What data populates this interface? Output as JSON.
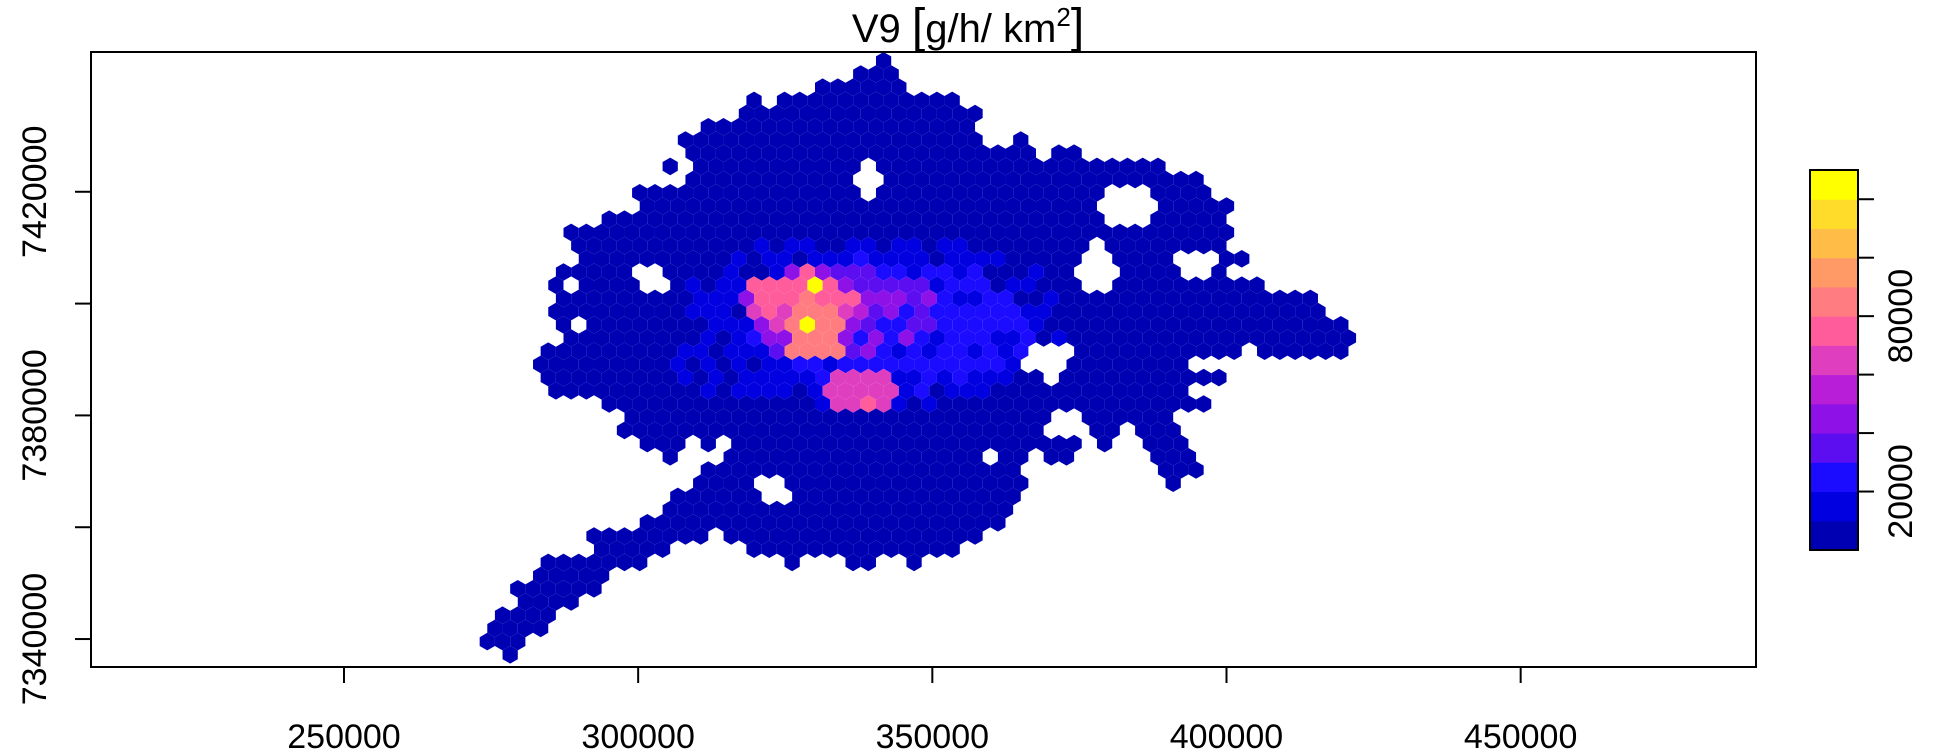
{
  "chart_data": {
    "type": "heatmap",
    "subtype": "hexbin",
    "title": {
      "prefix": "V9 ",
      "unit_main": "g/h/ km",
      "unit_exp": "2"
    },
    "xlabel": "",
    "ylabel": "",
    "x_ticks": [
      250000,
      300000,
      350000,
      400000,
      450000
    ],
    "x_tick_labels": [
      "250000",
      "300000",
      "350000",
      "400000",
      "450000"
    ],
    "y_ticks": [
      7340000,
      7380000,
      7420000
    ],
    "y_tick_labels": [
      "7340000",
      "7380000",
      "7420000"
    ],
    "xlim": [
      207000,
      490000
    ],
    "ylim": [
      7335000,
      7445000
    ],
    "grid": false,
    "colorbar": {
      "colors": [
        "#0000b3",
        "#0000e0",
        "#1c0cff",
        "#5c0ef0",
        "#8e12e8",
        "#b81ed8",
        "#df3fbf",
        "#ff5c9c",
        "#ff7d80",
        "#ff9a66",
        "#ffbd47",
        "#ffdc2a",
        "#ffff00"
      ],
      "tick_values": [
        20000,
        80000
      ],
      "tick_labels": [
        "20000",
        "80000"
      ],
      "range": [
        0,
        130000
      ],
      "minor_ticks": [
        20000,
        30000,
        40000,
        50000,
        60000,
        70000,
        80000,
        90000,
        100000,
        110000,
        120000
      ]
    },
    "blobs": [
      {
        "x": 345000,
        "y": 7400000,
        "rx": 58000,
        "ry": 31000,
        "level": 0
      },
      {
        "x": 338000,
        "y": 7425000,
        "rx": 30000,
        "ry": 14000,
        "level": 0
      },
      {
        "x": 380000,
        "y": 7414000,
        "rx": 22000,
        "ry": 13000,
        "level": 0
      },
      {
        "x": 395000,
        "y": 7398000,
        "rx": 13000,
        "ry": 9000,
        "level": 0
      },
      {
        "x": 412000,
        "y": 7394000,
        "rx": 10000,
        "ry": 4500,
        "level": 0
      },
      {
        "x": 338000,
        "y": 7366000,
        "rx": 27000,
        "ry": 13000,
        "level": 0
      },
      {
        "x": 296000,
        "y": 7389000,
        "rx": 14000,
        "ry": 7000,
        "level": 0
      },
      {
        "x": 372000,
        "y": 7385000,
        "rx": 12000,
        "ry": 11000,
        "level": 0
      },
      {
        "x": 340000,
        "y": 7397000,
        "rx": 32000,
        "ry": 16000,
        "level": 1
      },
      {
        "x": 315000,
        "y": 7388000,
        "rx": 10000,
        "ry": 6000,
        "level": 1
      },
      {
        "x": 343000,
        "y": 7396000,
        "rx": 23000,
        "ry": 12000,
        "level": 2
      },
      {
        "x": 335000,
        "y": 7398000,
        "rx": 16000,
        "ry": 9000,
        "level": 3
      },
      {
        "x": 330000,
        "y": 7399000,
        "rx": 12000,
        "ry": 7000,
        "level": 4
      },
      {
        "x": 338000,
        "y": 7385000,
        "rx": 7000,
        "ry": 4000,
        "level": 6
      },
      {
        "x": 328000,
        "y": 7400000,
        "rx": 9000,
        "ry": 5000,
        "level": 6
      },
      {
        "x": 327000,
        "y": 7402000,
        "rx": 8000,
        "ry": 3500,
        "level": 7
      },
      {
        "x": 330000,
        "y": 7395000,
        "rx": 5000,
        "ry": 6000,
        "level": 8
      },
      {
        "x": 329000,
        "y": 7396500,
        "rx": 2000,
        "ry": 2600,
        "level": 12
      },
      {
        "x": 331000,
        "y": 7403500,
        "rx": 1500,
        "ry": 1500,
        "level": 12
      }
    ],
    "spokes": [
      {
        "points": [
          [
            322000,
            7376000
          ],
          [
            312000,
            7365000
          ],
          [
            300000,
            7357000
          ],
          [
            285000,
            7349000
          ],
          [
            278000,
            7341000
          ]
        ],
        "width": 4000,
        "level": 0
      },
      {
        "points": [
          [
            328000,
            7372000
          ],
          [
            318000,
            7364000
          ]
        ],
        "width": 3000,
        "level": 0
      },
      {
        "points": [
          [
            383000,
            7388000
          ],
          [
            388000,
            7378000
          ],
          [
            392000,
            7370000
          ]
        ],
        "width": 3000,
        "level": 0
      },
      {
        "points": [
          [
            396000,
            7396000
          ],
          [
            405000,
            7398000
          ],
          [
            412000,
            7399000
          ],
          [
            418000,
            7394000
          ]
        ],
        "width": 3000,
        "level": 0
      },
      {
        "points": [
          [
            330000,
            7415000
          ],
          [
            337000,
            7433000
          ],
          [
            341000,
            7438000
          ]
        ],
        "width": 5000,
        "level": 0
      },
      {
        "points": [
          [
            295000,
            7393000
          ],
          [
            293000,
            7410000
          ]
        ],
        "width": 5000,
        "level": 0
      },
      {
        "points": [
          [
            305000,
            7375000
          ],
          [
            297000,
            7384000
          ]
        ],
        "width": 4000,
        "level": 0
      }
    ],
    "holes": [
      {
        "x": 339000,
        "y": 7422000,
        "rx": 3500,
        "ry": 3000
      },
      {
        "x": 378000,
        "y": 7407000,
        "rx": 4000,
        "ry": 4000
      },
      {
        "x": 383000,
        "y": 7417000,
        "rx": 5000,
        "ry": 4000
      },
      {
        "x": 370000,
        "y": 7390000,
        "rx": 4000,
        "ry": 3500
      },
      {
        "x": 372000,
        "y": 7378000,
        "rx": 3500,
        "ry": 3000
      },
      {
        "x": 300000,
        "y": 7365000,
        "rx": 3000,
        "ry": 3000
      },
      {
        "x": 323000,
        "y": 7367000,
        "rx": 3000,
        "ry": 2500
      },
      {
        "x": 361000,
        "y": 7432000,
        "rx": 4000,
        "ry": 3000
      },
      {
        "x": 395000,
        "y": 7407000,
        "rx": 3000,
        "ry": 3000
      },
      {
        "x": 302000,
        "y": 7405000,
        "rx": 3000,
        "ry": 3000
      }
    ]
  }
}
